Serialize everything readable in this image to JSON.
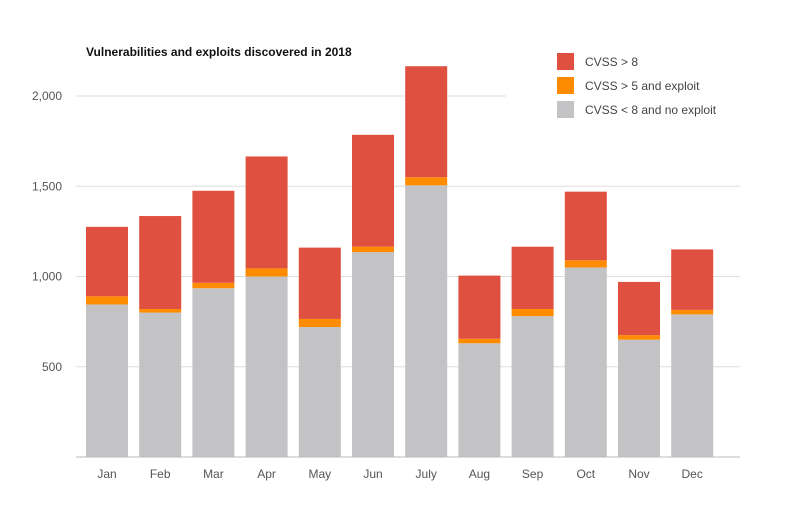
{
  "chart_data": {
    "type": "bar",
    "stacked": true,
    "title": "Vulnerabilities and exploits discovered in 2018",
    "xlabel": "",
    "ylabel": "",
    "ylim": [
      0,
      2200
    ],
    "yticks": [
      500,
      1000,
      1500,
      2000
    ],
    "ytick_labels": [
      "500",
      "1,000",
      "1,500",
      "2,000"
    ],
    "categories": [
      "Jan",
      "Feb",
      "Mar",
      "Apr",
      "May",
      "Jun",
      "July",
      "Aug",
      "Sep",
      "Oct",
      "Nov",
      "Dec"
    ],
    "series": [
      {
        "name": "CVSS < 8 and no exploit",
        "color": "#c3c3c5",
        "values": [
          845,
          800,
          935,
          1000,
          720,
          1135,
          1505,
          630,
          780,
          1050,
          650,
          790
        ]
      },
      {
        "name": "CVSS > 5 and exploit",
        "color": "#ff8c00",
        "values": [
          45,
          20,
          30,
          45,
          45,
          30,
          45,
          25,
          40,
          40,
          25,
          25
        ]
      },
      {
        "name": "CVSS > 8",
        "color": "#e05040",
        "values": [
          385,
          515,
          510,
          620,
          395,
          620,
          615,
          350,
          345,
          380,
          295,
          335
        ]
      }
    ],
    "legend": {
      "position": "top-right",
      "entries": [
        {
          "label": "CVSS > 8",
          "color": "#e05040"
        },
        {
          "label": "CVSS > 5 and exploit",
          "color": "#ff8c00"
        },
        {
          "label": "CVSS < 8 and no exploit",
          "color": "#c3c3c5"
        }
      ]
    },
    "grid": true
  }
}
